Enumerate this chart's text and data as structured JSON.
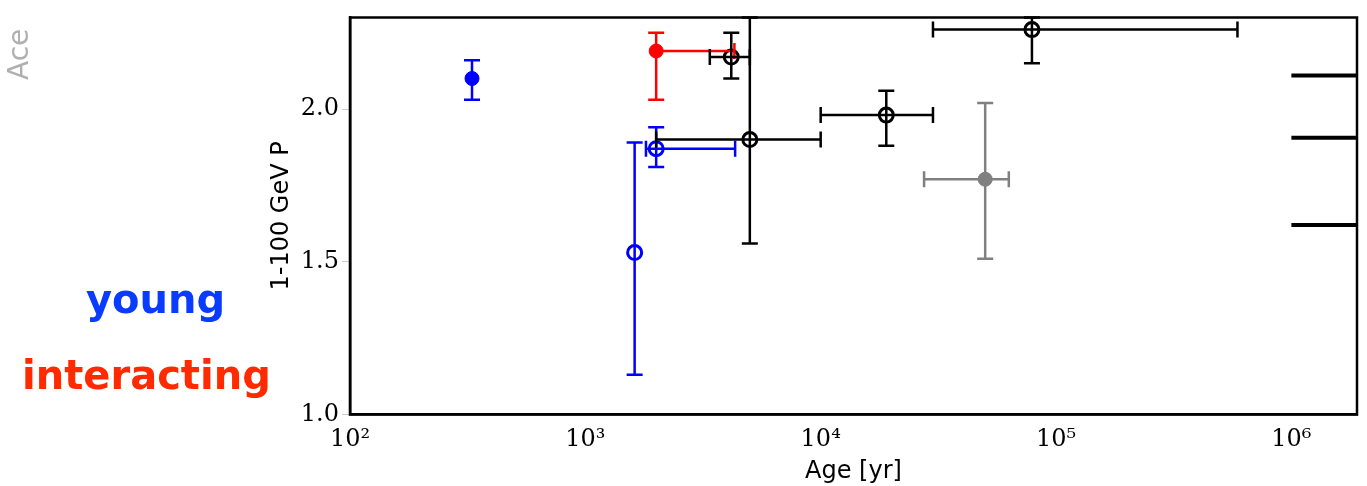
{
  "chart_data": {
    "type": "scatter",
    "xlabel": "Age [yr]",
    "ylabel": "1-100 GeV P",
    "log": "x",
    "grid": false,
    "legend": false,
    "marker": "circle",
    "xlim": [
      100,
      1900000
    ],
    "xticks": [
      {
        "value": 100,
        "label": "10²"
      },
      {
        "value": 1000,
        "label": "10³"
      },
      {
        "value": 10000,
        "label": "10⁴"
      },
      {
        "value": 100000,
        "label": "10⁵"
      },
      {
        "value": 1000000,
        "label": "10⁶"
      }
    ],
    "ylim": [
      1.0,
      2.3
    ],
    "yticks": [
      {
        "value": 1.0,
        "label": "1.0"
      },
      {
        "value": 1.5,
        "label": "1.5"
      },
      {
        "value": 2.0,
        "label": "2.0"
      }
    ],
    "annotations": [
      "Ace",
      "young",
      "interacting"
    ],
    "series": [
      {
        "color": "#0000ff",
        "x": [
          330
        ],
        "values": [
          2.1
        ],
        "errors": [
          [
            2.03,
            2.16
          ]
        ]
      },
      {
        "color": "#ff0000",
        "x": [
          2000
        ],
        "values": [
          2.19
        ],
        "errors": [
          [
            2.03,
            2.25
          ]
        ],
        "xerrors": [
          [
            2000,
            4300
          ]
        ]
      },
      {
        "color": "#808080",
        "x": [
          50000
        ],
        "values": [
          1.77
        ],
        "errors": [
          [
            1.51,
            2.02
          ]
        ],
        "xerrors": [
          [
            27500,
            63000
          ]
        ]
      },
      {
        "color": "#0000ff",
        "x": [
          1620,
          2000
        ],
        "values": [
          1.53,
          1.87
        ],
        "errors": [
          [
            1.13,
            1.89
          ],
          [
            1.81,
            1.94
          ]
        ],
        "xerrors": [
          null,
          [
            1810,
            4330
          ]
        ]
      },
      {
        "color": "#000000",
        "x": [
          4170,
          5000,
          19000,
          79000
        ],
        "values": [
          2.17,
          1.9,
          1.98,
          2.26
        ],
        "errors": [
          [
            2.1,
            2.25
          ],
          [
            1.56,
            2.3
          ],
          [
            1.88,
            2.06
          ],
          [
            2.15,
            2.3
          ]
        ],
        "xerrors": [
          [
            3380,
            5000
          ],
          [
            2000,
            10000
          ],
          [
            10000,
            30000
          ],
          [
            30000,
            590000
          ]
        ]
      },
      {
        "type": "line",
        "marker": "none",
        "color": "#000000",
        "x": [
          1000000,
          1900000
        ],
        "values": [
          2.11,
          2.11
        ]
      },
      {
        "type": "line",
        "marker": "none",
        "color": "#000000",
        "x": [
          1000000,
          1900000
        ],
        "values": [
          1.906,
          1.906
        ]
      },
      {
        "type": "line",
        "marker": "none",
        "color": "#000000",
        "x": [
          1000000,
          1900000
        ],
        "values": [
          1.62,
          1.62
        ]
      }
    ]
  }
}
